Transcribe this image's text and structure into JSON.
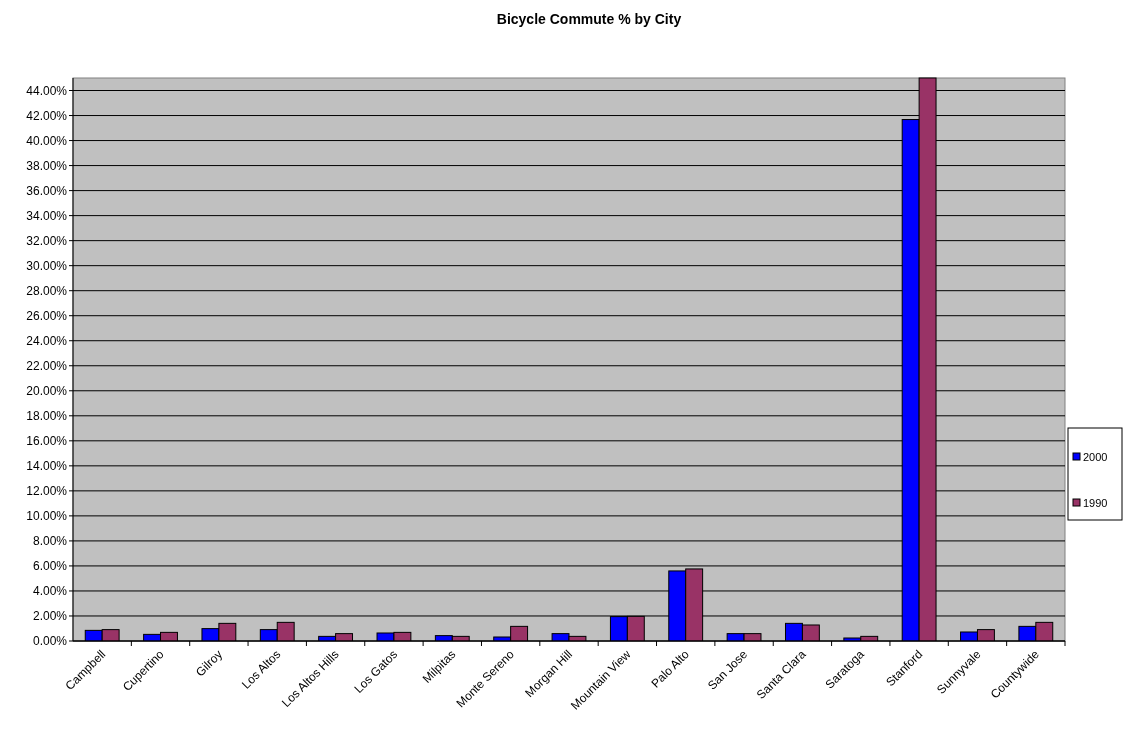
{
  "chart_data": {
    "type": "bar",
    "title": "Bicycle Commute % by City",
    "categories": [
      "Campbell",
      "Cupertino",
      "Gilroy",
      "Los Altos",
      "Los Altos Hills",
      "Los Gatos",
      "Milpitas",
      "Monte Sereno",
      "Morgan Hill",
      "Mountain View",
      "Palo Alto",
      "San Jose",
      "Santa Clara",
      "Saratoga",
      "Stanford",
      "Sunnyvale",
      "Countywide"
    ],
    "series": [
      {
        "name": "2000",
        "color": "#0000ff",
        "values": [
          0.85,
          0.53,
          0.99,
          0.91,
          0.37,
          0.64,
          0.43,
          0.32,
          0.59,
          1.95,
          5.6,
          0.59,
          1.41,
          0.24,
          41.68,
          0.72,
          1.17
        ]
      },
      {
        "name": "1990",
        "color": "#993366",
        "values": [
          0.91,
          0.69,
          1.41,
          1.49,
          0.59,
          0.69,
          0.37,
          1.17,
          0.37,
          1.97,
          5.76,
          0.59,
          1.28,
          0.37,
          45,
          0.91,
          1.49
        ]
      }
    ],
    "ylim": [
      0,
      45
    ],
    "yticks": [
      {
        "value": 0,
        "label": "0.00%"
      },
      {
        "value": 2,
        "label": "2.00%"
      },
      {
        "value": 4,
        "label": "4.00%"
      },
      {
        "value": 6,
        "label": "6.00%"
      },
      {
        "value": 8,
        "label": "8.00%"
      },
      {
        "value": 10,
        "label": "10.00%"
      },
      {
        "value": 12,
        "label": "12.00%"
      },
      {
        "value": 14,
        "label": "14.00%"
      },
      {
        "value": 16,
        "label": "16.00%"
      },
      {
        "value": 18,
        "label": "18.00%"
      },
      {
        "value": 20,
        "label": "20.00%"
      },
      {
        "value": 22,
        "label": "22.00%"
      },
      {
        "value": 24,
        "label": "24.00%"
      },
      {
        "value": 26,
        "label": "26.00%"
      },
      {
        "value": 28,
        "label": "28.00%"
      },
      {
        "value": 30,
        "label": "30.00%"
      },
      {
        "value": 32,
        "label": "32.00%"
      },
      {
        "value": 34,
        "label": "34.00%"
      },
      {
        "value": 36,
        "label": "36.00%"
      },
      {
        "value": 38,
        "label": "38.00%"
      },
      {
        "value": 40,
        "label": "40.00%"
      },
      {
        "value": 42,
        "label": "42.00%"
      },
      {
        "value": 44,
        "label": "44.00%"
      }
    ],
    "grid": "y",
    "legend": "right"
  }
}
